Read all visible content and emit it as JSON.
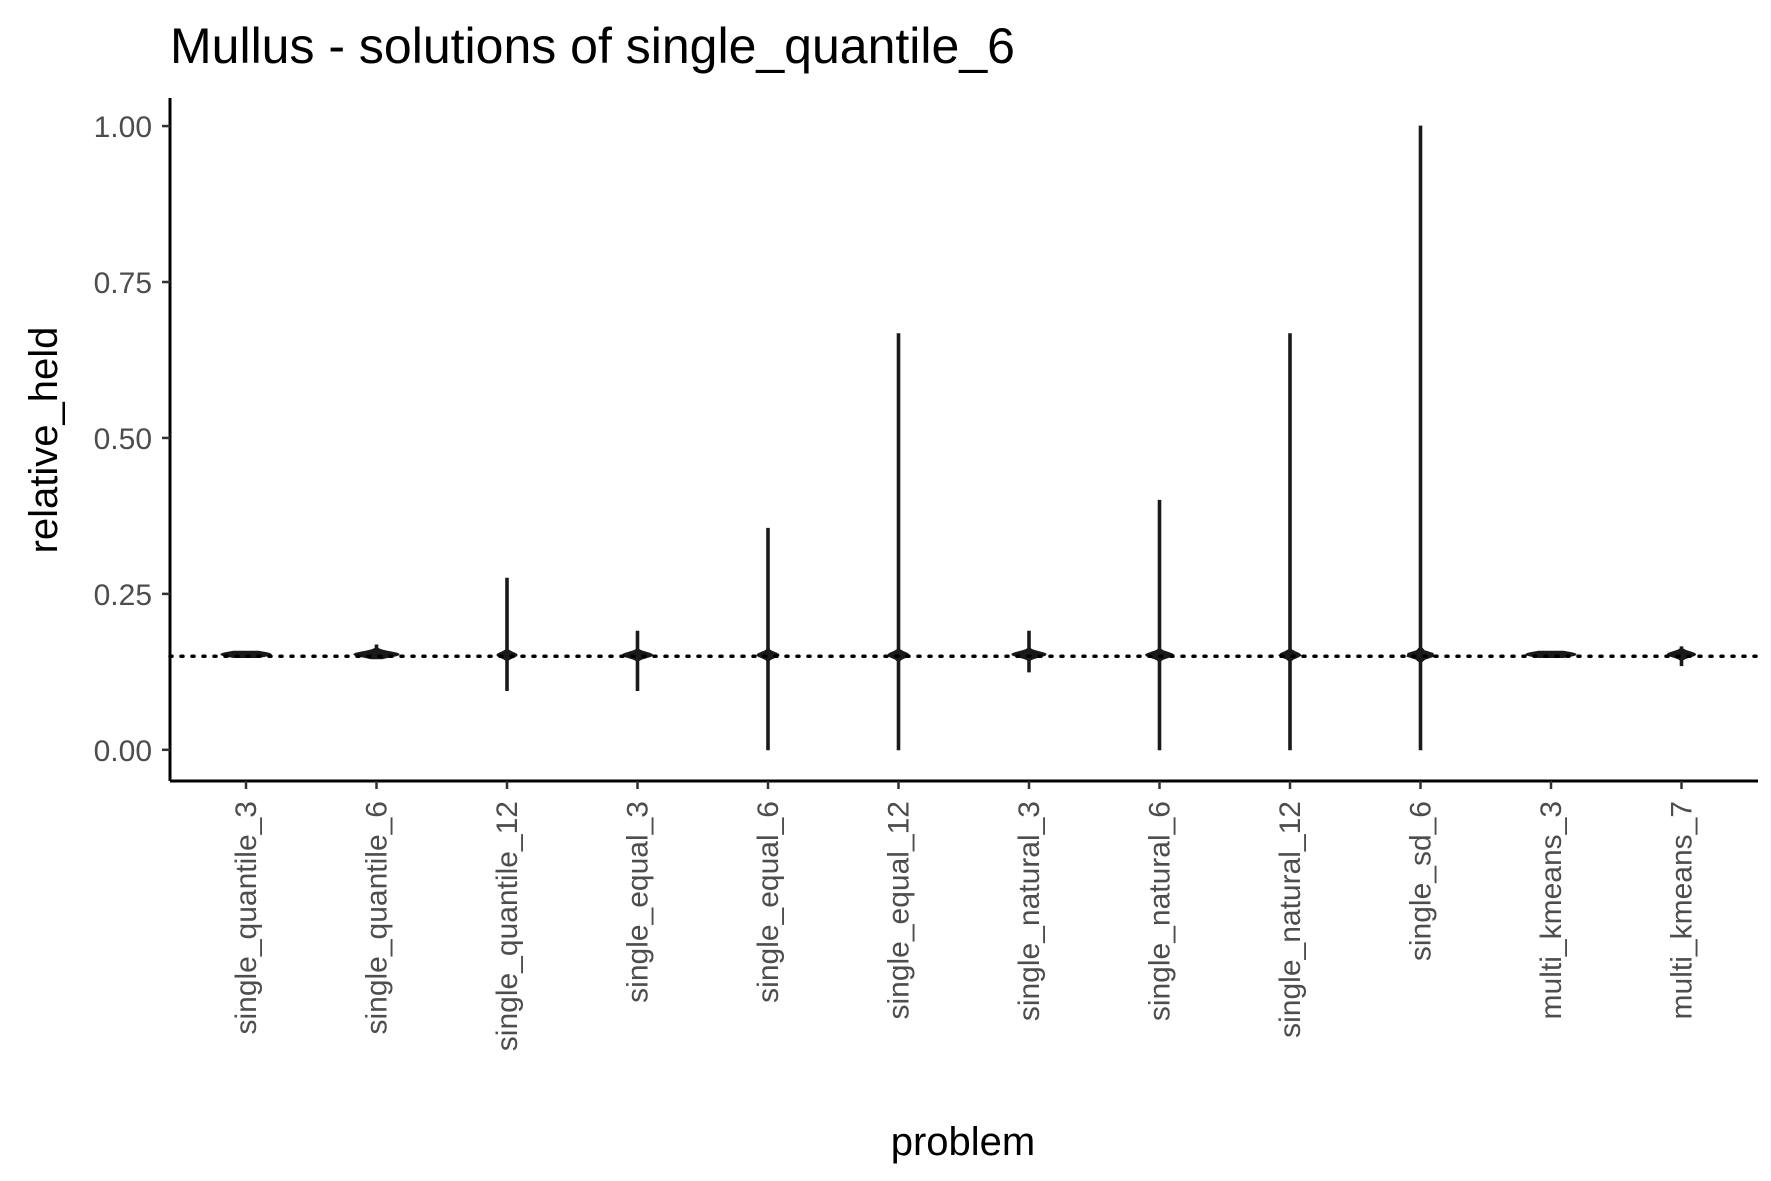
{
  "chart_data": {
    "type": "violin",
    "title": "Mullus - solutions of single_quantile_6",
    "xlabel": "problem",
    "ylabel": "relative_held",
    "ylim": [
      -0.05,
      1.045
    ],
    "yticks": [
      0,
      0.25,
      0.5,
      0.75,
      1.0
    ],
    "ytick_labels": [
      "0.00",
      "0.25",
      "0.50",
      "0.75",
      "1.00"
    ],
    "reference_line": {
      "y": 0.15,
      "style": "dotted"
    },
    "grid": false,
    "categories": [
      "single_quantile_3",
      "single_quantile_6",
      "single_quantile_12",
      "single_equal_3",
      "single_equal_6",
      "single_equal_12",
      "single_natural_3",
      "single_natural_6",
      "single_natural_12",
      "single_sd_6",
      "multi_kmeans_3",
      "multi_kmeans_7"
    ],
    "distributions": [
      {
        "min": 0.148,
        "max": 0.158,
        "center": 0.153,
        "spread": 0.5
      },
      {
        "min": 0.146,
        "max": 0.168,
        "center": 0.153,
        "spread": 0.45
      },
      {
        "min": 0.095,
        "max": 0.275,
        "center": 0.152,
        "spread": 0.2
      },
      {
        "min": 0.095,
        "max": 0.19,
        "center": 0.152,
        "spread": 0.3
      },
      {
        "min": 0.0,
        "max": 0.355,
        "center": 0.152,
        "spread": 0.22
      },
      {
        "min": 0.0,
        "max": 0.667,
        "center": 0.152,
        "spread": 0.22
      },
      {
        "min": 0.125,
        "max": 0.19,
        "center": 0.153,
        "spread": 0.34
      },
      {
        "min": 0.0,
        "max": 0.4,
        "center": 0.152,
        "spread": 0.28
      },
      {
        "min": 0.0,
        "max": 0.667,
        "center": 0.152,
        "spread": 0.22
      },
      {
        "min": 0.0,
        "max": 1.0,
        "center": 0.152,
        "spread": 0.3
      },
      {
        "min": 0.148,
        "max": 0.158,
        "center": 0.153,
        "spread": 0.5
      },
      {
        "min": 0.135,
        "max": 0.165,
        "center": 0.153,
        "spread": 0.28
      }
    ],
    "colors": {
      "violin": "#1a1a1a",
      "axis": "#000000",
      "tick_label": "#4d4d4d"
    }
  }
}
